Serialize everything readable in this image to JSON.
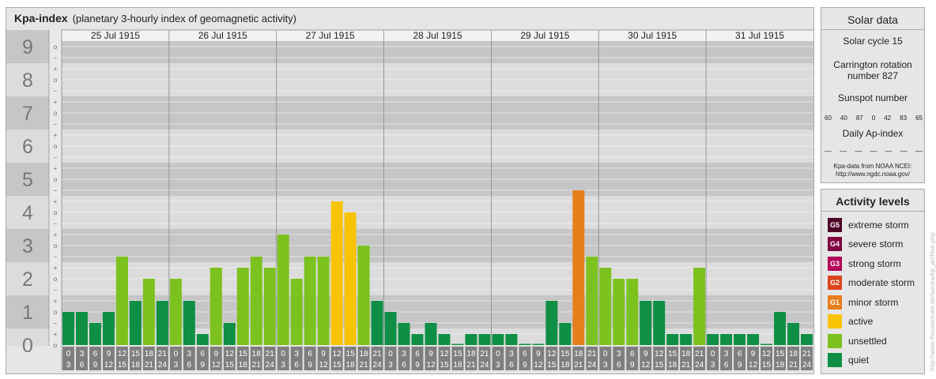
{
  "header": {
    "title": "Kpa-index",
    "subtitle": "(planetary 3-hourly index of geomagnetic activity)"
  },
  "chart_data": {
    "type": "bar",
    "title": "Kpa-index",
    "subtitle": "(planetary 3-hourly index of geomagnetic activity)",
    "ylim": [
      0,
      9
    ],
    "y_ticks": [
      "0",
      "1",
      "2",
      "3",
      "4",
      "5",
      "6",
      "7",
      "8",
      "9"
    ],
    "sub_ticks": [
      "o",
      "+",
      "−"
    ],
    "days": [
      "25 Jul 1915",
      "26 Jul 1915",
      "27 Jul 1915",
      "28 Jul 1915",
      "29 Jul 1915",
      "30 Jul 1915",
      "31 Jul 1915"
    ],
    "intervals": [
      [
        "0",
        "3"
      ],
      [
        "3",
        "6"
      ],
      [
        "6",
        "9"
      ],
      [
        "9",
        "12"
      ],
      [
        "12",
        "15"
      ],
      [
        "15",
        "18"
      ],
      [
        "18",
        "21"
      ],
      [
        "21",
        "24"
      ]
    ],
    "values": [
      [
        1.0,
        1.0,
        0.667,
        1.0,
        2.667,
        1.333,
        2.0,
        1.333
      ],
      [
        2.0,
        1.333,
        0.333,
        2.333,
        0.667,
        2.333,
        2.667,
        2.333
      ],
      [
        3.333,
        2.0,
        2.667,
        2.667,
        4.333,
        4.0,
        3.0,
        1.333
      ],
      [
        1.0,
        0.667,
        0.333,
        0.667,
        0.333,
        0.0,
        0.333,
        0.333
      ],
      [
        0.333,
        0.333,
        0.0,
        0.0,
        1.333,
        0.667,
        4.667,
        2.667
      ],
      [
        2.333,
        2.0,
        2.0,
        1.333,
        1.333,
        0.333,
        0.333,
        2.333
      ],
      [
        0.333,
        0.333,
        0.333,
        0.333,
        0.0,
        1.0,
        0.667,
        0.333
      ]
    ]
  },
  "solar": {
    "title": "Solar data",
    "cycle": "Solar cycle 15",
    "carrington_line1": "Carrington rotation",
    "carrington_line2": "number 827",
    "sunspot_label": "Sunspot number",
    "sunspot_values": [
      "60",
      "40",
      "87",
      "0",
      "42",
      "83",
      "65"
    ],
    "ap_label": "Daily Ap-index",
    "ap_values": [
      "—",
      "—",
      "—",
      "—",
      "—",
      "—",
      "—"
    ],
    "source_line1": "Kpa-data from NOAA NCEI:",
    "source_line2": "http://www.ngdc.noaa.gov/"
  },
  "activity": {
    "title": "Activity levels",
    "levels": [
      {
        "badge": "G5",
        "label": "extreme storm",
        "color": "#4d0026"
      },
      {
        "badge": "G4",
        "label": "severe storm",
        "color": "#800040"
      },
      {
        "badge": "G3",
        "label": "strong storm",
        "color": "#b3005a"
      },
      {
        "badge": "G2",
        "label": "moderate storm",
        "color": "#d9451c"
      },
      {
        "badge": "G1",
        "label": "minor storm",
        "color": "#e67e1c"
      },
      {
        "badge": "",
        "label": "active",
        "color": "#f8c300"
      },
      {
        "badge": "",
        "label": "unsettled",
        "color": "#7cc21e"
      },
      {
        "badge": "",
        "label": "quiet",
        "color": "#0e8f45"
      }
    ]
  },
  "credit": "http://www.theusersuite.de/aurora/kp_archive.php"
}
